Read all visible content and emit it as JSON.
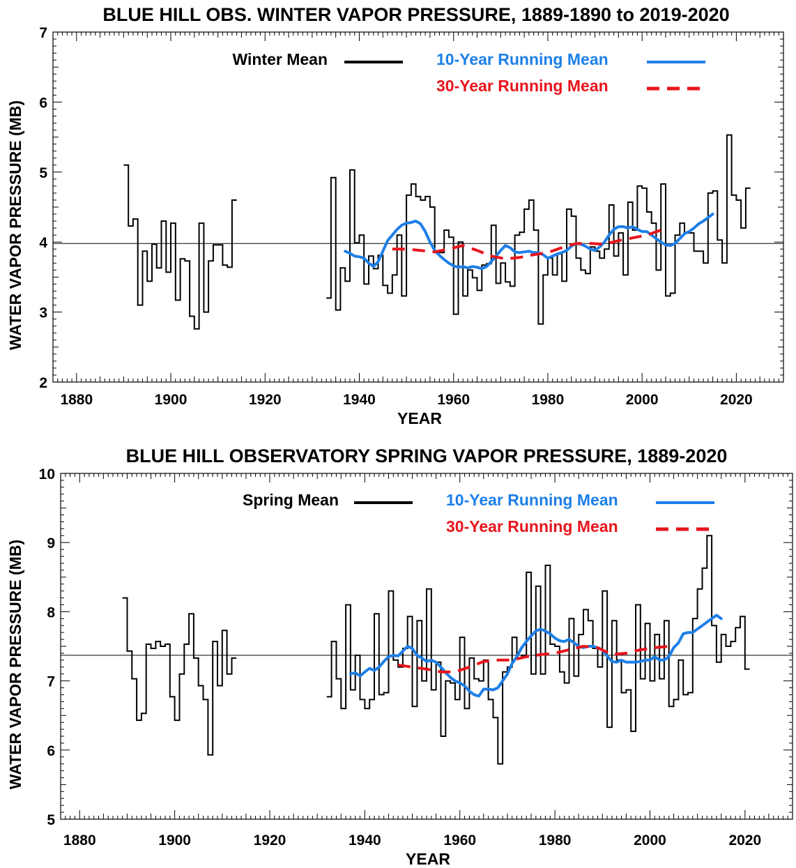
{
  "chart_data": [
    {
      "type": "line",
      "title": "BLUE HILL OBS. WINTER VAPOR PRESSURE, 1889-1890 to 2019-2020",
      "xlabel": "YEAR",
      "ylabel": "WATER VAPOR PRESSURE (MB)",
      "xlim": [
        1875,
        2030
      ],
      "ylim": [
        2,
        7
      ],
      "xticks": [
        1880,
        1900,
        1920,
        1940,
        1960,
        1980,
        2000,
        2020
      ],
      "yticks": [
        2,
        3,
        4,
        5,
        6,
        7
      ],
      "reference_line": 3.98,
      "legend": {
        "placement": "top",
        "entries": [
          {
            "label": "Winter Mean",
            "color": "#000000",
            "style": "solid"
          },
          {
            "label": "10-Year Running Mean",
            "color": "#1e7fe8",
            "style": "solid"
          },
          {
            "label": "30-Year Running Mean",
            "color": "#e8141c",
            "style": "dashed"
          }
        ]
      },
      "series": [
        {
          "name": "Winter Mean",
          "color": "#000000",
          "style": "step",
          "segments": [
            {
              "start": 1890,
              "values": [
                5.1,
                4.23,
                4.33,
                3.1,
                3.87,
                3.44,
                3.97,
                3.63,
                4.3,
                3.57,
                4.27,
                3.17,
                3.76,
                3.73,
                2.94,
                2.76,
                4.27,
                3.0,
                3.73,
                3.96,
                3.96,
                3.67,
                3.64,
                4.6
              ]
            },
            {
              "start": 1933,
              "values": [
                3.2,
                4.92,
                3.03,
                3.63,
                3.44,
                5.03,
                3.99,
                4.1,
                3.4,
                3.8,
                3.62,
                3.81,
                3.38,
                3.27,
                3.53,
                4.1,
                3.23,
                4.67,
                4.83,
                4.65,
                4.6,
                4.65,
                4.5,
                3.85,
                3.85,
                4.17,
                4.07,
                2.97,
                4.0,
                3.23,
                3.6,
                3.49,
                3.31,
                3.67,
                3.69,
                4.24,
                3.41,
                3.7,
                3.43,
                3.37,
                4.1,
                4.14,
                4.47,
                4.6,
                4.17,
                2.83,
                3.53,
                3.77,
                3.53,
                3.83,
                3.44,
                4.47,
                4.37,
                3.77,
                3.6,
                3.55,
                3.93,
                3.87,
                3.77,
                3.9,
                4.53,
                3.8,
                4.13,
                3.53,
                4.57,
                4.17,
                4.8,
                4.77,
                4.43,
                4.27,
                3.6,
                4.83,
                3.23,
                3.27,
                4.1,
                4.27,
                4.13,
                4.13,
                3.87,
                3.87,
                3.7,
                4.7,
                4.73,
                4.03,
                3.7,
                5.53,
                4.67,
                4.6,
                4.2,
                4.77
              ]
            }
          ]
        },
        {
          "name": "10-Year Running Mean",
          "color": "#1e7fe8",
          "style": "solid",
          "x": [
            1937,
            1938,
            1939,
            1940,
            1941,
            1942,
            1943,
            1944,
            1945,
            1946,
            1947,
            1948,
            1949,
            1950,
            1951,
            1952,
            1953,
            1954,
            1955,
            1956,
            1957,
            1958,
            1959,
            1960,
            1961,
            1962,
            1963,
            1964,
            1965,
            1966,
            1967,
            1968,
            1969,
            1970,
            1971,
            1972,
            1973,
            1974,
            1975,
            1976,
            1977,
            1978,
            1979,
            1980,
            1981,
            1982,
            1983,
            1984,
            1985,
            1986,
            1987,
            1988,
            1989,
            1990,
            1991,
            1992,
            1993,
            1994,
            1995,
            1996,
            1997,
            1998,
            1999,
            2000,
            2001,
            2002,
            2003,
            2004,
            2005,
            2006,
            2007,
            2008,
            2009,
            2010,
            2011,
            2012,
            2013,
            2014,
            2015
          ],
          "values": [
            3.87,
            3.84,
            3.8,
            3.79,
            3.77,
            3.7,
            3.65,
            3.72,
            3.87,
            4.02,
            4.1,
            4.18,
            4.24,
            4.27,
            4.28,
            4.3,
            4.26,
            4.15,
            4.0,
            3.88,
            3.81,
            3.75,
            3.7,
            3.66,
            3.64,
            3.65,
            3.63,
            3.65,
            3.64,
            3.62,
            3.65,
            3.72,
            3.8,
            3.88,
            3.95,
            3.92,
            3.86,
            3.85,
            3.86,
            3.87,
            3.85,
            3.85,
            3.82,
            3.77,
            3.8,
            3.83,
            3.85,
            3.88,
            3.94,
            3.98,
            3.97,
            3.94,
            3.9,
            3.88,
            3.93,
            4.0,
            4.1,
            4.18,
            4.22,
            4.22,
            4.2,
            4.22,
            4.18,
            4.15,
            4.15,
            4.1,
            4.05,
            4.0,
            3.96,
            3.95,
            3.98,
            4.05,
            4.12,
            4.15,
            4.2,
            4.26,
            4.3,
            4.35,
            4.4
          ]
        },
        {
          "name": "30-Year Running Mean",
          "color": "#e8141c",
          "style": "dashed",
          "x": [
            1947,
            1950,
            1953,
            1956,
            1959,
            1962,
            1965,
            1968,
            1971,
            1974,
            1977,
            1980,
            1983,
            1986,
            1989,
            1992,
            1995,
            1998,
            2001,
            2004
          ],
          "values": [
            3.9,
            3.9,
            3.88,
            3.86,
            3.9,
            3.95,
            3.88,
            3.8,
            3.76,
            3.78,
            3.82,
            3.85,
            3.92,
            3.98,
            3.98,
            3.97,
            4.02,
            4.06,
            4.1,
            4.17
          ]
        }
      ]
    },
    {
      "type": "line",
      "title": "BLUE HILL OBSERVATORY SPRING VAPOR PRESSURE, 1889-2020",
      "xlabel": "YEAR",
      "ylabel": "WATER VAPOR PRESSURE (MB)",
      "xlim": [
        1876,
        2030
      ],
      "ylim": [
        5,
        10
      ],
      "xticks": [
        1880,
        1900,
        1920,
        1940,
        1960,
        1980,
        2000,
        2020
      ],
      "yticks": [
        5,
        6,
        7,
        8,
        9,
        10
      ],
      "reference_line": 7.37,
      "legend": {
        "placement": "top",
        "entries": [
          {
            "label": "Spring Mean",
            "color": "#000000",
            "style": "solid"
          },
          {
            "label": "10-Year Running Mean",
            "color": "#1e7fe8",
            "style": "solid"
          },
          {
            "label": "30-Year Running Mean",
            "color": "#e8141c",
            "style": "dashed"
          }
        ]
      },
      "series": [
        {
          "name": "Spring Mean",
          "color": "#000000",
          "style": "step",
          "segments": [
            {
              "start": 1889,
              "values": [
                8.2,
                7.43,
                7.03,
                6.43,
                6.53,
                7.53,
                7.47,
                7.57,
                7.5,
                7.53,
                6.77,
                6.43,
                7.1,
                7.53,
                7.97,
                7.33,
                6.93,
                6.73,
                5.93,
                7.57,
                6.93,
                7.73,
                7.1,
                7.33
              ]
            },
            {
              "start": 1932,
              "values": [
                6.77,
                7.57,
                7.03,
                6.6,
                8.1,
                6.87,
                7.37,
                6.73,
                6.6,
                6.73,
                7.97,
                6.8,
                6.83,
                8.3,
                7.3,
                7.2,
                7.47,
                7.93,
                6.63,
                7.87,
                7.0,
                8.33,
                6.87,
                7.27,
                6.2,
                7.0,
                6.97,
                6.73,
                7.63,
                6.6,
                7.33,
                7.03,
                7.0,
                7.3,
                6.73,
                6.47,
                5.8,
                7.13,
                7.2,
                7.63,
                7.33,
                7.37,
                8.57,
                7.1,
                8.37,
                7.1,
                8.67,
                7.53,
                7.5,
                7.13,
                6.97,
                7.9,
                7.07,
                7.67,
                8.03,
                7.87,
                7.47,
                7.2,
                8.3,
                6.33,
                7.87,
                7.3,
                6.83,
                6.87,
                6.27,
                8.1,
                7.03,
                7.83,
                7.0,
                7.67,
                7.03,
                7.87,
                6.63,
                6.73,
                7.3,
                6.8,
                6.83,
                7.9,
                8.33,
                8.63,
                9.1,
                7.8,
                7.27,
                7.67,
                7.5,
                7.57,
                7.77,
                7.93,
                7.17
              ]
            }
          ]
        },
        {
          "name": "10-Year Running Mean",
          "color": "#1e7fe8",
          "style": "solid",
          "x": [
            1937,
            1938,
            1939,
            1940,
            1941,
            1942,
            1943,
            1944,
            1945,
            1946,
            1947,
            1948,
            1949,
            1950,
            1951,
            1952,
            1953,
            1954,
            1955,
            1956,
            1957,
            1958,
            1959,
            1960,
            1961,
            1962,
            1963,
            1964,
            1965,
            1966,
            1967,
            1968,
            1969,
            1970,
            1971,
            1972,
            1973,
            1974,
            1975,
            1976,
            1977,
            1978,
            1979,
            1980,
            1981,
            1982,
            1983,
            1984,
            1985,
            1986,
            1987,
            1988,
            1989,
            1990,
            1991,
            1992,
            1993,
            1994,
            1995,
            1996,
            1997,
            1998,
            1999,
            2000,
            2001,
            2002,
            2003,
            2004,
            2005,
            2006,
            2007,
            2008,
            2009,
            2010,
            2011,
            2012,
            2013,
            2014,
            2015
          ],
          "values": [
            7.1,
            7.12,
            7.07,
            7.13,
            7.18,
            7.15,
            7.2,
            7.28,
            7.35,
            7.37,
            7.36,
            7.43,
            7.5,
            7.47,
            7.37,
            7.33,
            7.28,
            7.3,
            7.27,
            7.2,
            7.12,
            7.05,
            7.0,
            6.97,
            6.93,
            6.85,
            6.8,
            6.78,
            6.88,
            6.88,
            6.87,
            6.9,
            7.0,
            7.1,
            7.25,
            7.35,
            7.48,
            7.57,
            7.65,
            7.72,
            7.75,
            7.72,
            7.68,
            7.62,
            7.58,
            7.57,
            7.6,
            7.55,
            7.5,
            7.48,
            7.5,
            7.5,
            7.48,
            7.45,
            7.36,
            7.28,
            7.27,
            7.3,
            7.27,
            7.27,
            7.27,
            7.28,
            7.3,
            7.3,
            7.35,
            7.3,
            7.3,
            7.35,
            7.48,
            7.55,
            7.68,
            7.7,
            7.7,
            7.75,
            7.8,
            7.85,
            7.9,
            7.95,
            7.9
          ]
        },
        {
          "name": "30-Year Running Mean",
          "color": "#e8141c",
          "style": "dashed",
          "x": [
            1947,
            1950,
            1953,
            1956,
            1959,
            1962,
            1965,
            1968,
            1971,
            1974,
            1977,
            1980,
            1983,
            1986,
            1989,
            1992,
            1995,
            1998,
            2001,
            2004
          ],
          "values": [
            7.23,
            7.2,
            7.17,
            7.13,
            7.13,
            7.2,
            7.28,
            7.3,
            7.3,
            7.35,
            7.38,
            7.4,
            7.45,
            7.5,
            7.48,
            7.38,
            7.4,
            7.45,
            7.48,
            7.5
          ]
        }
      ]
    }
  ]
}
